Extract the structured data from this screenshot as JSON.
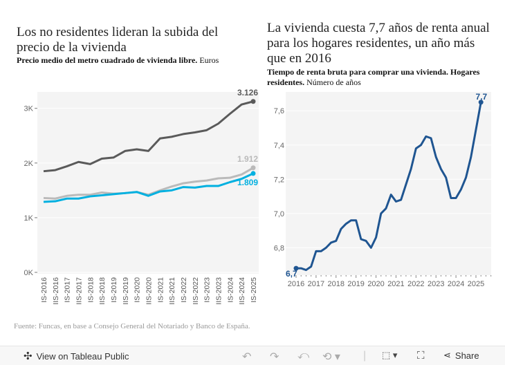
{
  "left": {
    "title": "Los no residentes lideran la subida del precio de la vivienda",
    "subtitle_bold": "Precio medio del metro cuadrado de vivienda libre.",
    "subtitle_rest": " Euros"
  },
  "right": {
    "title": "La vivienda cuesta 7,7 años de renta anual para los hogares residentes, un año más que en 2016",
    "subtitle_bold": "Tiempo de renta bruta para comprar una vivienda. Hogares residentes.",
    "subtitle_rest": " Número de años"
  },
  "source": "Fuente: Funcas, en base a Consejo General del Notariado y Banco de España.",
  "toolbar": {
    "view_label": "View on Tableau Public",
    "share_label": "Share"
  },
  "chart_data": [
    {
      "type": "line",
      "ylim": [
        0,
        3300
      ],
      "grid": true,
      "yticks": [
        {
          "v": 0,
          "label": "0K"
        },
        {
          "v": 1000,
          "label": "1K"
        },
        {
          "v": 2000,
          "label": "2K"
        },
        {
          "v": 3000,
          "label": "3K"
        }
      ],
      "categories": [
        "IS-2016",
        "IIS-2016",
        "IS-2017",
        "IIS-2017",
        "IS-2018",
        "IIS-2018",
        "IS-2019",
        "IIS-2019",
        "IS-2020",
        "IIS-2020",
        "IS-2021",
        "IIS-2021",
        "IS-2022",
        "IIS-2022",
        "IS-2023",
        "IIS-2023",
        "IS-2024",
        "IIS-2024",
        "IS-2025"
      ],
      "series": [
        {
          "color": "#5a5a5a",
          "end_label": "3.126",
          "values": [
            1850,
            1870,
            1940,
            2020,
            1980,
            2080,
            2100,
            2220,
            2250,
            2220,
            2450,
            2480,
            2530,
            2560,
            2600,
            2720,
            2900,
            3070,
            3126
          ]
        },
        {
          "color": "#bababa",
          "end_label": "1.912",
          "values": [
            1360,
            1350,
            1400,
            1420,
            1420,
            1460,
            1440,
            1450,
            1470,
            1420,
            1500,
            1570,
            1630,
            1660,
            1680,
            1720,
            1730,
            1790,
            1912
          ]
        },
        {
          "color": "#00b0e0",
          "end_label": "1.809",
          "values": [
            1290,
            1300,
            1350,
            1350,
            1390,
            1410,
            1430,
            1450,
            1470,
            1400,
            1480,
            1500,
            1560,
            1550,
            1580,
            1580,
            1650,
            1710,
            1809
          ]
        }
      ]
    },
    {
      "type": "line",
      "ylim": [
        6.64,
        7.71
      ],
      "grid": true,
      "color": "#1f5591",
      "yticks": [
        {
          "v": 6.8,
          "label": "6,8"
        },
        {
          "v": 7.0,
          "label": "7,0"
        },
        {
          "v": 7.2,
          "label": "7,2"
        },
        {
          "v": 7.4,
          "label": "7,4"
        },
        {
          "v": 7.6,
          "label": "7,6"
        }
      ],
      "xticks": [
        "2016",
        "2017",
        "2018",
        "2019",
        "2020",
        "2021",
        "2022",
        "2023",
        "2024",
        "2025"
      ],
      "start_label": "6,7",
      "end_label": "7,7",
      "values": [
        6.68,
        6.68,
        6.67,
        6.69,
        6.78,
        6.78,
        6.8,
        6.83,
        6.84,
        6.91,
        6.94,
        6.96,
        6.96,
        6.85,
        6.84,
        6.8,
        6.86,
        7.0,
        7.03,
        7.11,
        7.07,
        7.08,
        7.17,
        7.26,
        7.38,
        7.4,
        7.45,
        7.44,
        7.33,
        7.26,
        7.21,
        7.09,
        7.09,
        7.14,
        7.21,
        7.33,
        7.49,
        7.65
      ]
    }
  ]
}
